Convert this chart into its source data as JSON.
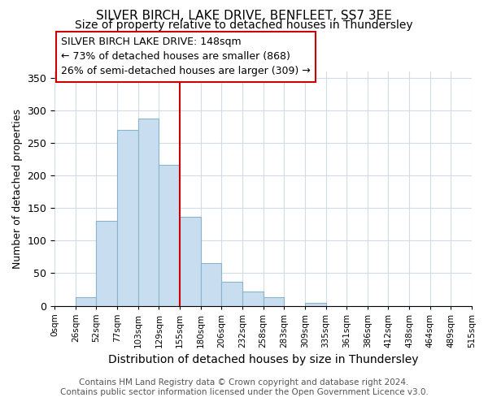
{
  "title": "SILVER BIRCH, LAKE DRIVE, BENFLEET, SS7 3EE",
  "subtitle": "Size of property relative to detached houses in Thundersley",
  "xlabel": "Distribution of detached houses by size in Thundersley",
  "ylabel": "Number of detached properties",
  "bin_labels": [
    "0sqm",
    "26sqm",
    "52sqm",
    "77sqm",
    "103sqm",
    "129sqm",
    "155sqm",
    "180sqm",
    "206sqm",
    "232sqm",
    "258sqm",
    "283sqm",
    "309sqm",
    "335sqm",
    "361sqm",
    "386sqm",
    "412sqm",
    "438sqm",
    "464sqm",
    "489sqm",
    "515sqm"
  ],
  "bar_heights": [
    0,
    13,
    130,
    270,
    288,
    217,
    137,
    65,
    37,
    22,
    13,
    0,
    5,
    0,
    0,
    0,
    0,
    0,
    0,
    0
  ],
  "bar_color": "#c8ddef",
  "bar_edge_color": "#8ab4cc",
  "annotation_line1": "SILVER BIRCH LAKE DRIVE: 148sqm",
  "annotation_line2": "← 73% of detached houses are smaller (868)",
  "annotation_line3": "26% of semi-detached houses are larger (309) →",
  "annotation_box_color": "white",
  "annotation_box_edge_color": "#cc0000",
  "vline_color": "#cc0000",
  "vline_x_index": 6,
  "ylim": [
    0,
    360
  ],
  "yticks": [
    0,
    50,
    100,
    150,
    200,
    250,
    300,
    350
  ],
  "footer_line1": "Contains HM Land Registry data © Crown copyright and database right 2024.",
  "footer_line2": "Contains public sector information licensed under the Open Government Licence v3.0.",
  "title_fontsize": 11,
  "subtitle_fontsize": 10,
  "xlabel_fontsize": 10,
  "ylabel_fontsize": 9,
  "annotation_fontsize": 9,
  "footer_fontsize": 7.5,
  "tick_fontsize": 7.5
}
